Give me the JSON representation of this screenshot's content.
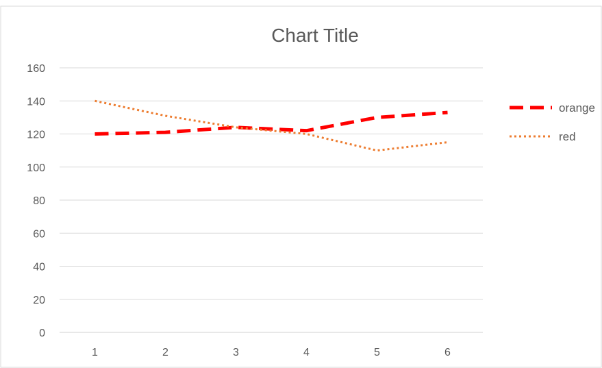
{
  "chart_data": {
    "type": "line",
    "title": "Chart Title",
    "x": [
      1,
      2,
      3,
      4,
      5,
      6
    ],
    "ylim": [
      0,
      160
    ],
    "y_ticks": [
      0,
      20,
      40,
      60,
      80,
      100,
      120,
      140,
      160
    ],
    "grid": true,
    "legend_position": "right",
    "series": [
      {
        "name": "orange",
        "values": [
          120,
          121,
          124,
          122,
          130,
          133
        ],
        "color": "#ff0000",
        "line_style": "dashed"
      },
      {
        "name": "red",
        "values": [
          140,
          131,
          124,
          120,
          110,
          115
        ],
        "color": "#ed7d31",
        "line_style": "dotted"
      }
    ]
  }
}
